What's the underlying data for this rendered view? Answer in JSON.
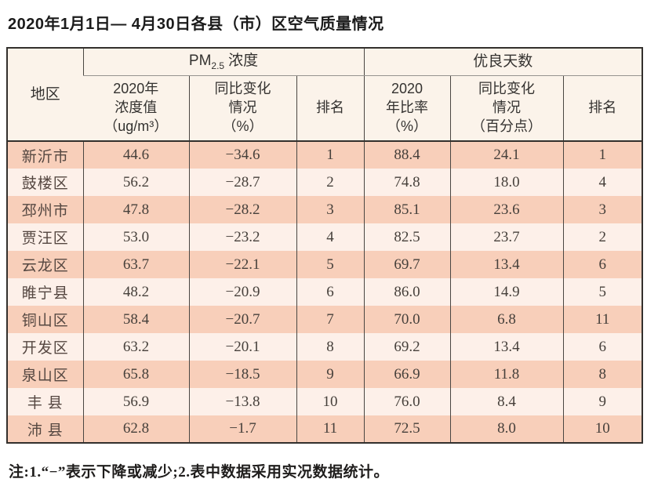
{
  "page": {
    "title": "2020年1月1日— 4月30日各县（市）区空气质量情况",
    "note": "注:1.“−”表示下降或减少;2.表中数据采用实况数据统计。"
  },
  "colors": {
    "row_odd_bg": "#f8cfba",
    "row_even_bg": "#fdf0e9",
    "header_bg": "#fbf3ea",
    "border_dark": "#33302d"
  },
  "table": {
    "header": {
      "region": "地区",
      "group_pm": {
        "prefix": "PM",
        "sub": "2.5",
        "suffix": "浓度"
      },
      "group_good": "优良天数",
      "pm_value": "2020年\n浓度值\n（ug/m³）",
      "pm_change": "同比变化\n情况\n（%）",
      "pm_rank": "排名",
      "good_rate": "2020\n年比率\n（%）",
      "good_change": "同比变化\n情况\n（百分点）",
      "good_rank": "排名"
    },
    "rows": [
      {
        "region": "新沂市",
        "pm_value": "44.6",
        "pm_change": "−34.6",
        "pm_rank": "1",
        "good_rate": "88.4",
        "good_change": "24.1",
        "good_rank": "1"
      },
      {
        "region": "鼓楼区",
        "pm_value": "56.2",
        "pm_change": "−28.7",
        "pm_rank": "2",
        "good_rate": "74.8",
        "good_change": "18.0",
        "good_rank": "4"
      },
      {
        "region": "邳州市",
        "pm_value": "47.8",
        "pm_change": "−28.2",
        "pm_rank": "3",
        "good_rate": "85.1",
        "good_change": "23.6",
        "good_rank": "3"
      },
      {
        "region": "贾汪区",
        "pm_value": "53.0",
        "pm_change": "−23.2",
        "pm_rank": "4",
        "good_rate": "82.5",
        "good_change": "23.7",
        "good_rank": "2"
      },
      {
        "region": "云龙区",
        "pm_value": "63.7",
        "pm_change": "−22.1",
        "pm_rank": "5",
        "good_rate": "69.7",
        "good_change": "13.4",
        "good_rank": "6"
      },
      {
        "region": "睢宁县",
        "pm_value": "48.2",
        "pm_change": "−20.9",
        "pm_rank": "6",
        "good_rate": "86.0",
        "good_change": "14.9",
        "good_rank": "5"
      },
      {
        "region": "铜山区",
        "pm_value": "58.4",
        "pm_change": "−20.7",
        "pm_rank": "7",
        "good_rate": "70.0",
        "good_change": "6.8",
        "good_rank": "11"
      },
      {
        "region": "开发区",
        "pm_value": "63.2",
        "pm_change": "−20.1",
        "pm_rank": "8",
        "good_rate": "69.2",
        "good_change": "13.4",
        "good_rank": "6"
      },
      {
        "region": "泉山区",
        "pm_value": "65.8",
        "pm_change": "−18.5",
        "pm_rank": "9",
        "good_rate": "66.9",
        "good_change": "11.8",
        "good_rank": "8"
      },
      {
        "region": "丰 县",
        "pm_value": "56.9",
        "pm_change": "−13.8",
        "pm_rank": "10",
        "good_rate": "76.0",
        "good_change": "8.4",
        "good_rank": "9"
      },
      {
        "region": "沛 县",
        "pm_value": "62.8",
        "pm_change": "−1.7",
        "pm_rank": "11",
        "good_rate": "72.5",
        "good_change": "8.0",
        "good_rank": "10"
      }
    ]
  }
}
